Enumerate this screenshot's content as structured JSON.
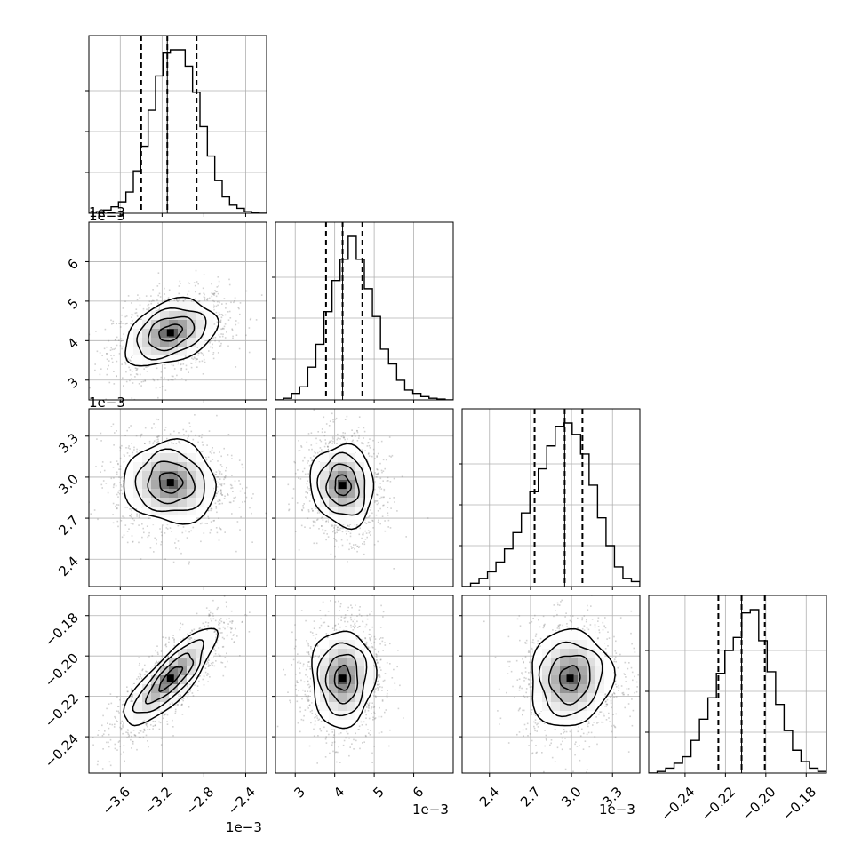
{
  "chart_data": {
    "type": "corner",
    "offset_text": "1e−3",
    "parameters": [
      {
        "range": [
          -3.9,
          -2.2
        ],
        "ticks": [
          -3.6,
          -3.2,
          -2.8,
          -2.4
        ],
        "tick_labels": [
          "−3.6",
          "−3.2",
          "−2.8",
          "−2.4"
        ],
        "scale_text": "1e−3",
        "quantiles": [
          -3.4,
          -3.15,
          -2.87
        ],
        "median": -3.15,
        "hist_values": [
          0,
          0.01,
          0.02,
          0.04,
          0.07,
          0.13,
          0.26,
          0.41,
          0.63,
          0.84,
          0.98,
          1.0,
          1.0,
          0.9,
          0.74,
          0.53,
          0.35,
          0.2,
          0.1,
          0.05,
          0.03,
          0.01,
          0.005,
          0
        ]
      },
      {
        "range": [
          2.5,
          7.0
        ],
        "ticks": [
          3,
          4,
          5,
          6
        ],
        "tick_labels": [
          "3",
          "4",
          "5",
          "6"
        ],
        "scale_text": "1e−3",
        "quantiles": [
          3.78,
          4.2,
          4.7
        ],
        "median": 4.2,
        "hist_values": [
          0,
          0.01,
          0.04,
          0.08,
          0.2,
          0.34,
          0.54,
          0.73,
          0.86,
          1.0,
          0.86,
          0.68,
          0.51,
          0.31,
          0.22,
          0.12,
          0.06,
          0.04,
          0.02,
          0.01,
          0.005,
          0
        ]
      },
      {
        "range": [
          2.2,
          3.5
        ],
        "ticks": [
          2.4,
          2.7,
          3.0,
          3.3
        ],
        "tick_labels": [
          "2.4",
          "2.7",
          "3.0",
          "3.3"
        ],
        "scale_text": "1e−3",
        "quantiles": [
          2.73,
          2.95,
          3.08
        ],
        "median": 2.95,
        "hist_values": [
          0,
          0.02,
          0.05,
          0.09,
          0.15,
          0.23,
          0.33,
          0.45,
          0.58,
          0.72,
          0.86,
          0.98,
          1.0,
          0.93,
          0.81,
          0.62,
          0.42,
          0.25,
          0.12,
          0.05,
          0.03
        ]
      },
      {
        "range": [
          -0.258,
          -0.17
        ],
        "ticks": [
          -0.24,
          -0.22,
          -0.2,
          -0.18
        ],
        "tick_labels": [
          "−0.24",
          "−0.22",
          "−0.20",
          "−0.18"
        ],
        "scale_text": "",
        "quantiles": [
          -0.2235,
          -0.212,
          -0.2005
        ],
        "median": -0.212,
        "hist_values": [
          0,
          0.01,
          0.03,
          0.06,
          0.1,
          0.2,
          0.33,
          0.46,
          0.61,
          0.75,
          0.83,
          0.98,
          1.0,
          0.81,
          0.62,
          0.42,
          0.26,
          0.14,
          0.07,
          0.03,
          0.01
        ]
      }
    ],
    "pairs": [
      {
        "row": 1,
        "col": 0,
        "center": [
          -3.12,
          4.2
        ],
        "sigma": [
          0.22,
          0.42
        ],
        "rho": 0.35
      },
      {
        "row": 2,
        "col": 0,
        "center": [
          -3.12,
          2.96
        ],
        "sigma": [
          0.22,
          0.15
        ],
        "rho": -0.05
      },
      {
        "row": 2,
        "col": 1,
        "center": [
          4.2,
          2.94
        ],
        "sigma": [
          0.4,
          0.15
        ],
        "rho": -0.08
      },
      {
        "row": 3,
        "col": 0,
        "center": [
          -3.12,
          -0.211
        ],
        "sigma": [
          0.22,
          0.012
        ],
        "rho": 0.82
      },
      {
        "row": 3,
        "col": 1,
        "center": [
          4.2,
          -0.211
        ],
        "sigma": [
          0.4,
          0.012
        ],
        "rho": 0.02
      },
      {
        "row": 3,
        "col": 2,
        "center": [
          2.99,
          -0.211
        ],
        "sigma": [
          0.15,
          0.012
        ],
        "rho": 0.06
      }
    ],
    "contour_levels_sigma": [
      0.5,
      1.0,
      1.5,
      2.0
    ],
    "grid": true,
    "colors": {
      "line": "#000000",
      "grid": "#b0b0b0",
      "points": "#7f7f7f"
    }
  }
}
